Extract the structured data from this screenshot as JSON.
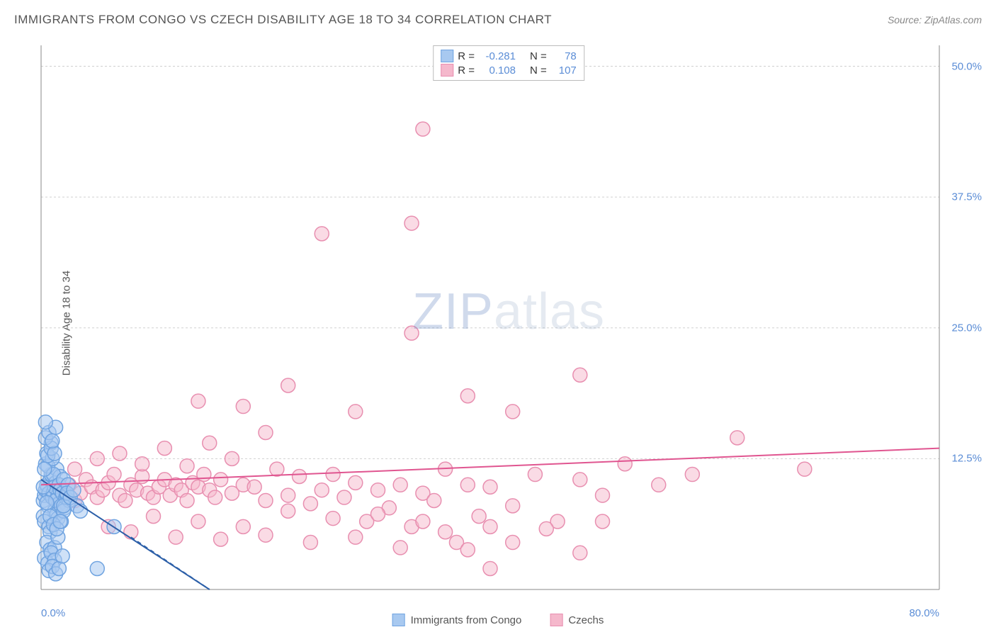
{
  "title": "IMMIGRANTS FROM CONGO VS CZECH DISABILITY AGE 18 TO 34 CORRELATION CHART",
  "source": "Source: ZipAtlas.com",
  "y_axis_label": "Disability Age 18 to 34",
  "watermark": {
    "part1": "ZIP",
    "part2": "atlas"
  },
  "chart": {
    "type": "scatter",
    "xlim": [
      0,
      80
    ],
    "ylim": [
      0,
      52
    ],
    "x_ticks": [
      {
        "value": 0,
        "label": "0.0%"
      },
      {
        "value": 80,
        "label": "80.0%"
      }
    ],
    "y_ticks": [
      {
        "value": 12.5,
        "label": "12.5%"
      },
      {
        "value": 25.0,
        "label": "25.0%"
      },
      {
        "value": 37.5,
        "label": "37.5%"
      },
      {
        "value": 50.0,
        "label": "50.0%"
      }
    ],
    "grid_color": "#d0d0d0",
    "axis_color": "#888888",
    "background_color": "#ffffff",
    "marker_radius": 10,
    "marker_stroke_width": 1.5,
    "line_width": 2
  },
  "series": [
    {
      "key": "congo",
      "label": "Immigrants from Congo",
      "fill": "#a8c9f0",
      "fill_opacity": 0.55,
      "stroke": "#6fa3e0",
      "line_color": "#2c5fa8",
      "R": "-0.281",
      "N": "78",
      "trend": {
        "x1": 0,
        "y1": 10.5,
        "x2": 15,
        "y2": 0
      },
      "trend_dash": {
        "x1": 8,
        "y1": 5,
        "x2": 15,
        "y2": 0
      },
      "points": [
        [
          0.2,
          8.5
        ],
        [
          0.3,
          9.0
        ],
        [
          0.4,
          9.5
        ],
        [
          0.5,
          10.0
        ],
        [
          0.6,
          8.0
        ],
        [
          0.7,
          9.2
        ],
        [
          0.8,
          10.5
        ],
        [
          0.9,
          11.0
        ],
        [
          1.0,
          8.8
        ],
        [
          1.1,
          9.3
        ],
        [
          1.2,
          7.5
        ],
        [
          1.3,
          10.2
        ],
        [
          1.4,
          11.5
        ],
        [
          1.5,
          9.0
        ],
        [
          1.6,
          8.2
        ],
        [
          1.7,
          10.8
        ],
        [
          0.2,
          7.0
        ],
        [
          0.3,
          6.5
        ],
        [
          0.4,
          12.0
        ],
        [
          0.5,
          13.0
        ],
        [
          0.6,
          11.8
        ],
        [
          0.7,
          6.0
        ],
        [
          0.8,
          5.5
        ],
        [
          0.9,
          14.0
        ],
        [
          1.0,
          12.5
        ],
        [
          1.1,
          11.0
        ],
        [
          1.2,
          9.8
        ],
        [
          1.3,
          8.5
        ],
        [
          1.4,
          7.2
        ],
        [
          1.5,
          6.8
        ],
        [
          1.6,
          10.0
        ],
        [
          1.7,
          9.5
        ],
        [
          1.8,
          8.0
        ],
        [
          1.9,
          9.2
        ],
        [
          2.0,
          10.5
        ],
        [
          2.1,
          7.8
        ],
        [
          2.2,
          8.8
        ],
        [
          2.3,
          9.0
        ],
        [
          2.4,
          10.0
        ],
        [
          2.5,
          8.5
        ],
        [
          0.5,
          4.5
        ],
        [
          0.8,
          3.8
        ],
        [
          1.2,
          4.0
        ],
        [
          1.5,
          5.0
        ],
        [
          1.8,
          6.5
        ],
        [
          2.0,
          7.5
        ],
        [
          0.3,
          11.5
        ],
        [
          0.6,
          12.8
        ],
        [
          0.9,
          13.5
        ],
        [
          1.2,
          13.0
        ],
        [
          0.4,
          14.5
        ],
        [
          0.7,
          15.0
        ],
        [
          1.0,
          14.2
        ],
        [
          1.3,
          15.5
        ],
        [
          0.2,
          9.8
        ],
        [
          0.5,
          8.3
        ],
        [
          0.8,
          7.0
        ],
        [
          1.1,
          6.2
        ],
        [
          1.4,
          5.8
        ],
        [
          1.7,
          6.5
        ],
        [
          2.0,
          8.0
        ],
        [
          2.3,
          9.2
        ],
        [
          2.6,
          8.8
        ],
        [
          2.9,
          9.5
        ],
        [
          3.2,
          8.0
        ],
        [
          3.5,
          7.5
        ],
        [
          0.3,
          3.0
        ],
        [
          0.6,
          2.5
        ],
        [
          0.9,
          3.5
        ],
        [
          1.2,
          2.8
        ],
        [
          0.4,
          16.0
        ],
        [
          0.7,
          1.8
        ],
        [
          1.0,
          2.2
        ],
        [
          1.3,
          1.5
        ],
        [
          1.6,
          2.0
        ],
        [
          1.9,
          3.2
        ],
        [
          6.5,
          6.0
        ],
        [
          5.0,
          2.0
        ]
      ]
    },
    {
      "key": "czechs",
      "label": "Czechs",
      "fill": "#f5b8cc",
      "fill_opacity": 0.5,
      "stroke": "#e88fb0",
      "line_color": "#e05590",
      "R": "0.108",
      "N": "107",
      "trend": {
        "x1": 0,
        "y1": 10.0,
        "x2": 80,
        "y2": 13.5
      },
      "points": [
        [
          1.5,
          9.0
        ],
        [
          2.0,
          9.5
        ],
        [
          2.5,
          10.0
        ],
        [
          3.0,
          8.5
        ],
        [
          3.5,
          9.2
        ],
        [
          4.0,
          10.5
        ],
        [
          4.5,
          9.8
        ],
        [
          5.0,
          8.8
        ],
        [
          5.5,
          9.5
        ],
        [
          6.0,
          10.2
        ],
        [
          6.5,
          11.0
        ],
        [
          7.0,
          9.0
        ],
        [
          7.5,
          8.5
        ],
        [
          8.0,
          10.0
        ],
        [
          8.5,
          9.5
        ],
        [
          9.0,
          10.8
        ],
        [
          9.5,
          9.2
        ],
        [
          10.0,
          8.8
        ],
        [
          10.5,
          9.8
        ],
        [
          11.0,
          10.5
        ],
        [
          11.5,
          9.0
        ],
        [
          12.0,
          10.0
        ],
        [
          12.5,
          9.5
        ],
        [
          13.0,
          8.5
        ],
        [
          13.5,
          10.2
        ],
        [
          14.0,
          9.8
        ],
        [
          14.5,
          11.0
        ],
        [
          15.0,
          9.5
        ],
        [
          15.5,
          8.8
        ],
        [
          16.0,
          10.5
        ],
        [
          17.0,
          9.2
        ],
        [
          18.0,
          10.0
        ],
        [
          19.0,
          9.8
        ],
        [
          20.0,
          8.5
        ],
        [
          21.0,
          11.5
        ],
        [
          22.0,
          9.0
        ],
        [
          23.0,
          10.8
        ],
        [
          24.0,
          8.2
        ],
        [
          25.0,
          9.5
        ],
        [
          26.0,
          11.0
        ],
        [
          27.0,
          8.8
        ],
        [
          28.0,
          10.2
        ],
        [
          29.0,
          6.5
        ],
        [
          30.0,
          9.5
        ],
        [
          31.0,
          7.8
        ],
        [
          32.0,
          10.0
        ],
        [
          33.0,
          6.0
        ],
        [
          34.0,
          9.2
        ],
        [
          35.0,
          8.5
        ],
        [
          36.0,
          11.5
        ],
        [
          37.0,
          4.5
        ],
        [
          38.0,
          10.0
        ],
        [
          39.0,
          7.0
        ],
        [
          40.0,
          9.8
        ],
        [
          42.0,
          8.0
        ],
        [
          44.0,
          11.0
        ],
        [
          46.0,
          6.5
        ],
        [
          48.0,
          10.5
        ],
        [
          50.0,
          9.0
        ],
        [
          52.0,
          12.0
        ],
        [
          55.0,
          10.0
        ],
        [
          58.0,
          11.0
        ],
        [
          62.0,
          14.5
        ],
        [
          68.0,
          11.5
        ],
        [
          5.0,
          12.5
        ],
        [
          7.0,
          13.0
        ],
        [
          9.0,
          12.0
        ],
        [
          11.0,
          13.5
        ],
        [
          13.0,
          11.8
        ],
        [
          15.0,
          14.0
        ],
        [
          17.0,
          12.5
        ],
        [
          20.0,
          15.0
        ],
        [
          14.0,
          18.0
        ],
        [
          18.0,
          17.5
        ],
        [
          22.0,
          19.5
        ],
        [
          28.0,
          17.0
        ],
        [
          48.0,
          20.5
        ],
        [
          33.0,
          24.5
        ],
        [
          25.0,
          34.0
        ],
        [
          33.0,
          35.0
        ],
        [
          34.0,
          44.0
        ],
        [
          6.0,
          6.0
        ],
        [
          8.0,
          5.5
        ],
        [
          10.0,
          7.0
        ],
        [
          12.0,
          5.0
        ],
        [
          14.0,
          6.5
        ],
        [
          16.0,
          4.8
        ],
        [
          18.0,
          6.0
        ],
        [
          20.0,
          5.2
        ],
        [
          22.0,
          7.5
        ],
        [
          24.0,
          4.5
        ],
        [
          26.0,
          6.8
        ],
        [
          28.0,
          5.0
        ],
        [
          30.0,
          7.2
        ],
        [
          32.0,
          4.0
        ],
        [
          34.0,
          6.5
        ],
        [
          36.0,
          5.5
        ],
        [
          38.0,
          3.8
        ],
        [
          40.0,
          6.0
        ],
        [
          42.0,
          4.5
        ],
        [
          45.0,
          5.8
        ],
        [
          48.0,
          3.5
        ],
        [
          50.0,
          6.5
        ],
        [
          40.0,
          2.0
        ],
        [
          38.0,
          18.5
        ],
        [
          42.0,
          17.0
        ],
        [
          3.0,
          11.5
        ]
      ]
    }
  ],
  "stats_labels": {
    "R": "R =",
    "N": "N ="
  },
  "bottom_legend": [
    {
      "key": "congo",
      "label": "Immigrants from Congo"
    },
    {
      "key": "czechs",
      "label": "Czechs"
    }
  ]
}
